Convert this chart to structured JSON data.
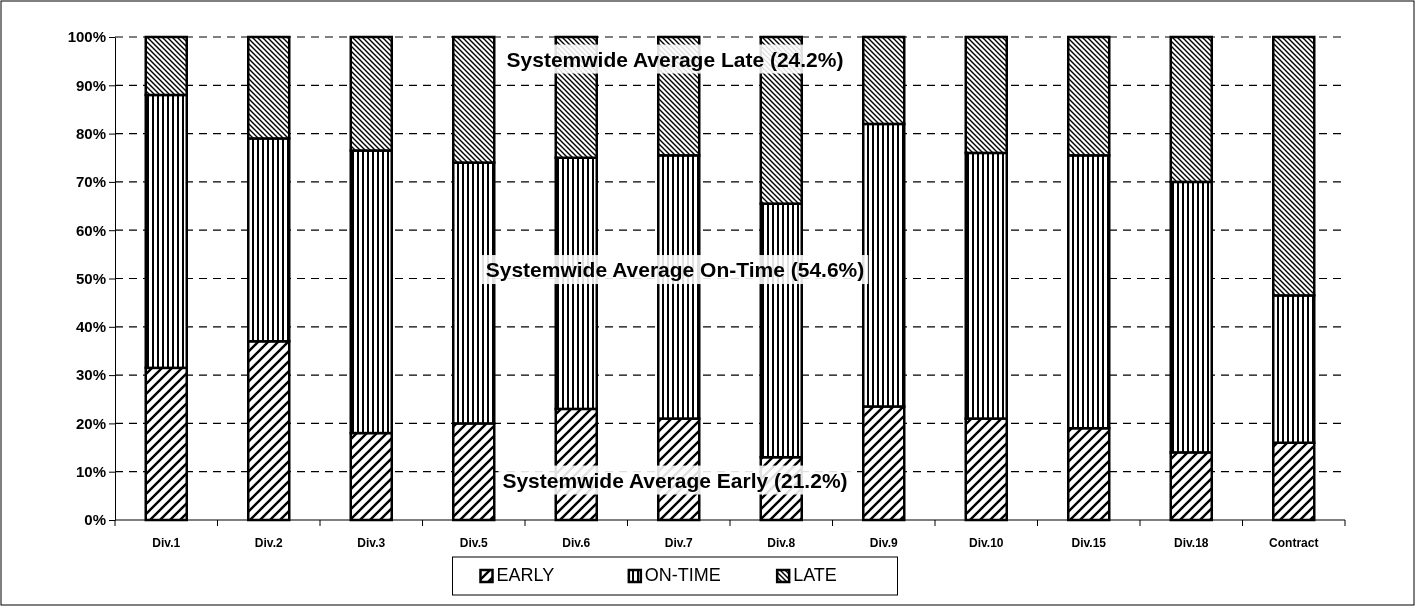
{
  "chart_data": {
    "type": "bar",
    "stacked": true,
    "categories": [
      "Div.1",
      "Div.2",
      "Div.3",
      "Div.5",
      "Div.6",
      "Div.7",
      "Div.8",
      "Div.9",
      "Div.10",
      "Div.15",
      "Div.18",
      "Contract"
    ],
    "series": [
      {
        "name": "EARLY",
        "color": "#000000",
        "values": [
          31.5,
          37,
          18,
          20,
          23,
          21,
          13,
          23.5,
          21,
          19,
          14,
          16
        ]
      },
      {
        "name": "ON-TIME",
        "color": "#000000",
        "values": [
          56.5,
          42,
          58.5,
          54,
          52,
          54.5,
          52.5,
          58.5,
          55,
          56.5,
          56,
          30.5
        ]
      },
      {
        "name": "LATE",
        "color": "#000000",
        "values": [
          12,
          21,
          23.5,
          26,
          25,
          24.5,
          34.5,
          18,
          24,
          24.5,
          30,
          53.5
        ]
      }
    ],
    "ylim": [
      0,
      100
    ],
    "yticks": [
      {
        "value": 0,
        "label": "0%"
      },
      {
        "value": 10,
        "label": "10%"
      },
      {
        "value": 20,
        "label": "20%"
      },
      {
        "value": 30,
        "label": "30%"
      },
      {
        "value": 40,
        "label": "40%"
      },
      {
        "value": 50,
        "label": "50%"
      },
      {
        "value": 60,
        "label": "60%"
      },
      {
        "value": 70,
        "label": "70%"
      },
      {
        "value": 80,
        "label": "80%"
      },
      {
        "value": 90,
        "label": "90%"
      },
      {
        "value": 100,
        "label": "100%"
      }
    ],
    "grid": "y",
    "legend": "bottom",
    "annotations": [
      "Systemwide Average Late (24.2%)",
      "Systemwide Average On-Time (54.6%)",
      "Systemwide Average Early (21.2%)"
    ]
  }
}
